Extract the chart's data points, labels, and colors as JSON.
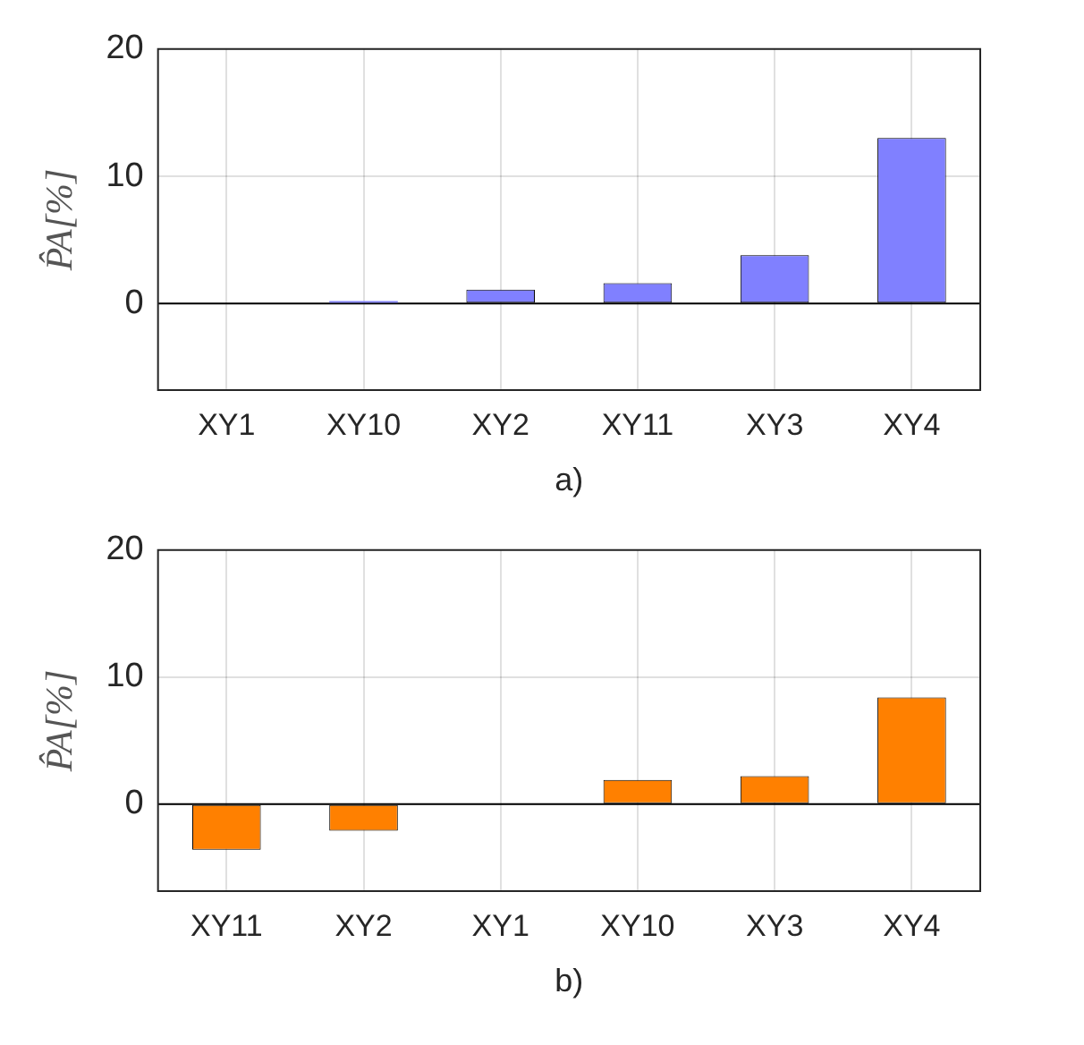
{
  "chart_data": [
    {
      "type": "bar",
      "categories": [
        "XY1",
        "XY10",
        "XY2",
        "XY11",
        "XY3",
        "XY4"
      ],
      "xlabel": "a)",
      "ylabel": "P̂A[%]",
      "series": [
        {
          "color": "#8080ff",
          "values": [
            0,
            0.2,
            1.1,
            1.6,
            3.8,
            13.0
          ]
        }
      ],
      "ylim": [
        -6.8,
        20
      ],
      "yticks": [
        0,
        10,
        20
      ],
      "grid": true,
      "ref_lines": [
        {
          "axis": "y",
          "value": 0,
          "color": "#000000"
        }
      ]
    },
    {
      "type": "bar",
      "categories": [
        "XY11",
        "XY2",
        "XY1",
        "XY10",
        "XY3",
        "XY4"
      ],
      "xlabel": "b)",
      "ylabel": "P̂A[%]",
      "series": [
        {
          "color": "#ff8000",
          "values": [
            -3.6,
            -2.1,
            0,
            1.9,
            2.2,
            8.4
          ]
        }
      ],
      "ylim": [
        -6.85,
        20
      ],
      "yticks": [
        0,
        10,
        20
      ],
      "grid": true,
      "ref_lines": [
        {
          "axis": "y",
          "value": 0,
          "color": "#000000"
        }
      ]
    }
  ]
}
